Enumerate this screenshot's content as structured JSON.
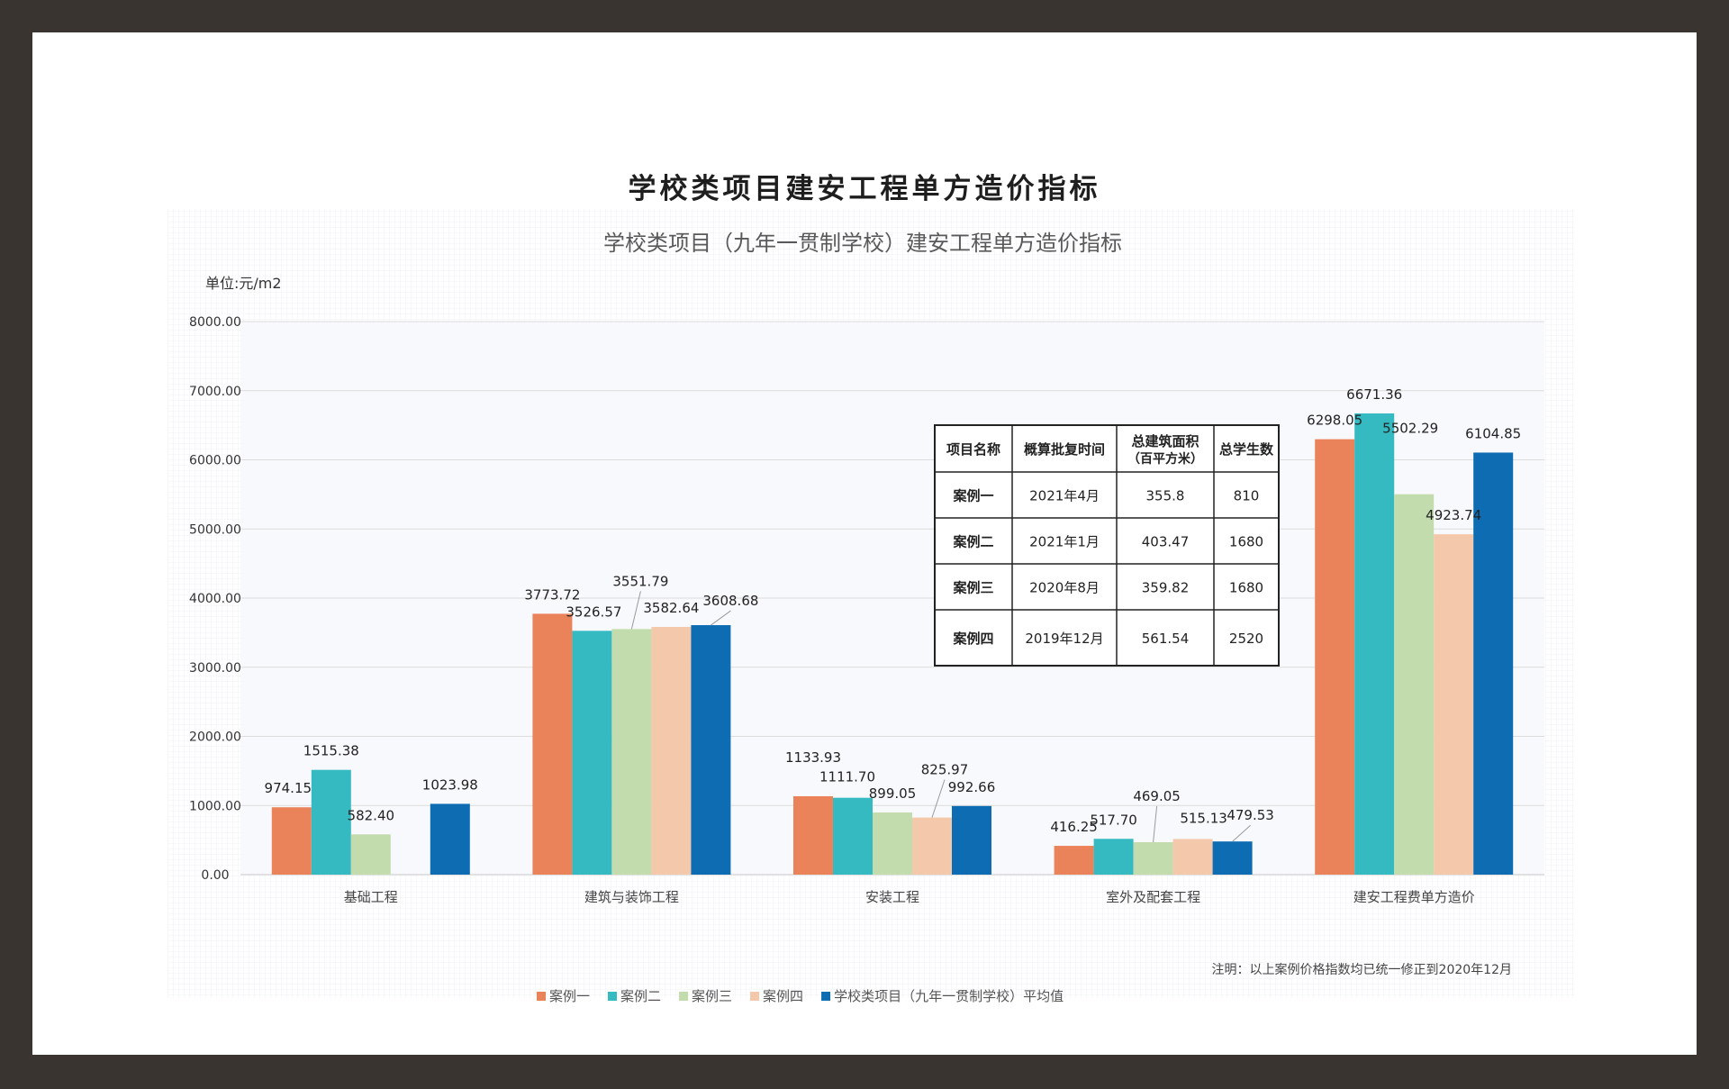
{
  "page": {
    "title": "学校类项目建安工程单方造价指标"
  },
  "chart_data": {
    "type": "bar",
    "title": "学校类项目（九年一贯制学校）建安工程单方造价指标",
    "unit_label": "单位:元/m2",
    "categories": [
      "基础工程",
      "建筑与装饰工程",
      "安装工程",
      "室外及配套工程",
      "建安工程费单方造价"
    ],
    "ylim": [
      0,
      8000
    ],
    "yticks": [
      "0.00",
      "1000.00",
      "2000.00",
      "3000.00",
      "4000.00",
      "5000.00",
      "6000.00",
      "7000.00",
      "8000.00"
    ],
    "grid": true,
    "legend_position": "bottom",
    "series": [
      {
        "name": "案例一",
        "color": "#ea825a",
        "values": [
          974.15,
          3773.72,
          1133.93,
          416.25,
          6298.05
        ],
        "labels": [
          "974.15",
          "3773.72",
          "1133.93",
          "416.25",
          "6298.05"
        ]
      },
      {
        "name": "案例二",
        "color": "#36bac2",
        "values": [
          1515.38,
          3526.57,
          1111.7,
          517.7,
          6671.36
        ],
        "labels": [
          "1515.38",
          "3526.57",
          "1111.70",
          "517.70",
          "6671.36"
        ]
      },
      {
        "name": "案例三",
        "color": "#c3dcae",
        "values": [
          582.4,
          3551.79,
          899.05,
          469.05,
          5502.29
        ],
        "labels": [
          "582.40",
          "3551.79",
          "899.05",
          "469.05",
          "5502.29"
        ]
      },
      {
        "name": "案例四",
        "color": "#f3c8ab",
        "values": [
          null,
          3582.64,
          825.97,
          515.13,
          4923.74
        ],
        "labels": [
          "",
          "3582.64",
          "825.97",
          "515.13",
          "4923.74"
        ]
      },
      {
        "name": "学校类项目（九年一贯制学校）平均值",
        "color": "#0e6cb3",
        "values": [
          1023.98,
          3608.68,
          992.66,
          479.53,
          6104.85
        ],
        "labels": [
          "1023.98",
          "3608.68",
          "992.66",
          "479.53",
          "6104.85"
        ]
      }
    ],
    "note": "注明：以上案例价格指数均已统一修正到2020年12月",
    "info_table": {
      "headers": [
        "项目名称",
        "概算批复时间",
        "总建筑面积",
        "（百平方米）",
        "总学生数"
      ],
      "rows": [
        [
          "案例一",
          "2021年4月",
          "355.8",
          "810"
        ],
        [
          "案例二",
          "2021年1月",
          "403.47",
          "1680"
        ],
        [
          "案例三",
          "2020年8月",
          "359.82",
          "1680"
        ],
        [
          "案例四",
          "2019年12月",
          "561.54",
          "2520"
        ]
      ]
    }
  }
}
